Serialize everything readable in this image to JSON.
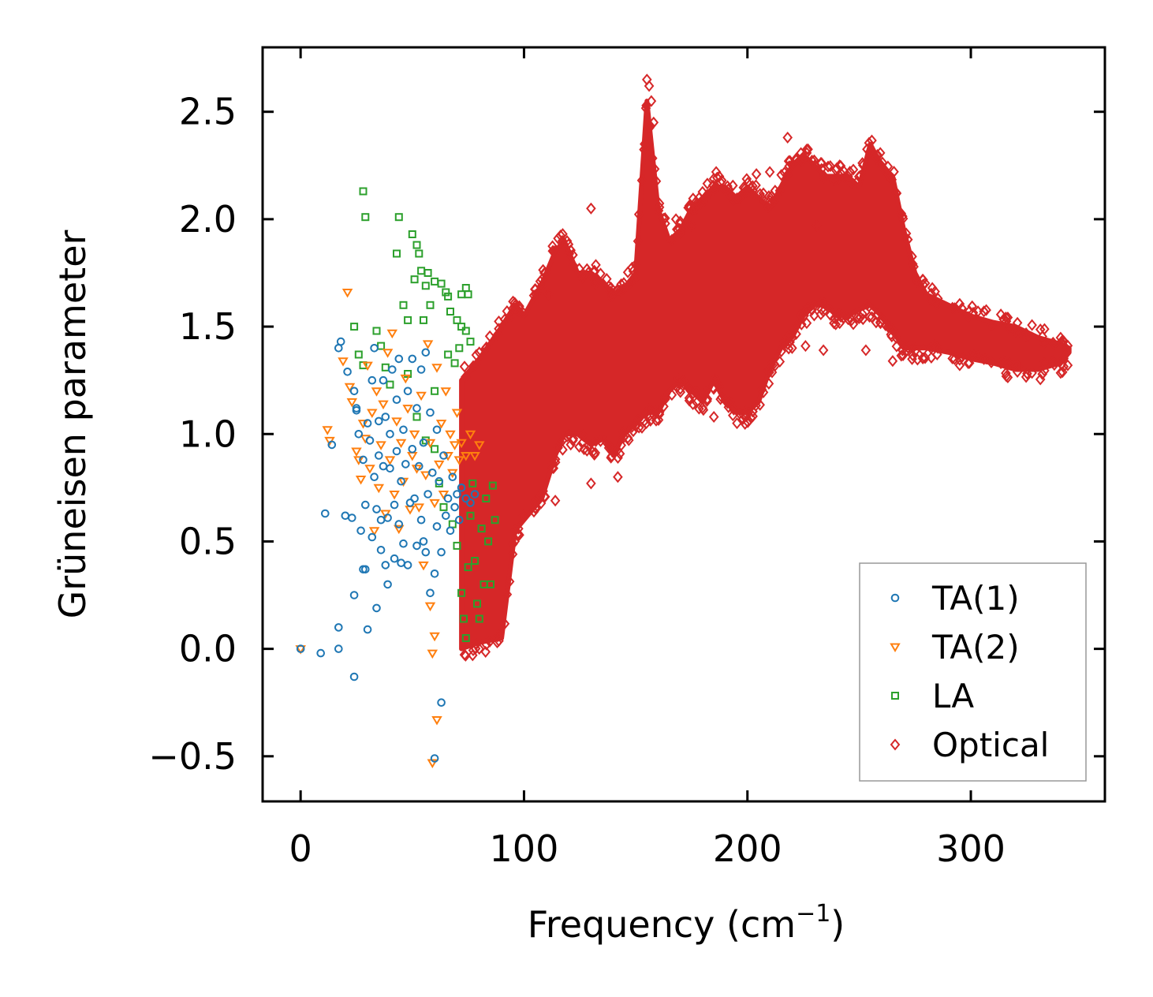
{
  "chart_data": {
    "type": "scatter",
    "title": "",
    "xlabel": "Frequency (cm",
    "xlabel_sup": "−1",
    "xlabel_close": ")",
    "ylabel": "Grüneisen parameter",
    "xlim": [
      -17,
      360
    ],
    "ylim": [
      -0.71,
      2.8
    ],
    "xticks": [
      0,
      100,
      200,
      300
    ],
    "xtick_labels": [
      "0",
      "100",
      "200",
      "300"
    ],
    "yticks": [
      -0.5,
      0.0,
      0.5,
      1.0,
      1.5,
      2.0,
      2.5
    ],
    "ytick_labels": [
      "−0.5",
      "0.0",
      "0.5",
      "1.0",
      "1.5",
      "2.0",
      "2.5"
    ],
    "legend_position": "lower-right",
    "series": [
      {
        "name": "TA(1)",
        "marker": "circle",
        "color": "#1f77b4",
        "points": [
          [
            0,
            0.0
          ],
          [
            9,
            -0.02
          ],
          [
            17,
            0.0
          ],
          [
            17,
            0.1
          ],
          [
            11,
            0.63
          ],
          [
            14,
            0.95
          ],
          [
            17,
            1.4
          ],
          [
            18,
            1.43
          ],
          [
            20,
            0.62
          ],
          [
            21,
            1.29
          ],
          [
            23,
            0.61
          ],
          [
            24,
            1.2
          ],
          [
            24,
            0.25
          ],
          [
            24,
            -0.13
          ],
          [
            25,
            1.12
          ],
          [
            25,
            1.11
          ],
          [
            26,
            1.0
          ],
          [
            27,
            0.55
          ],
          [
            28,
            0.37
          ],
          [
            28,
            0.88
          ],
          [
            29,
            0.37
          ],
          [
            29,
            0.67
          ],
          [
            30,
            0.09
          ],
          [
            30,
            1.05
          ],
          [
            31,
            0.97
          ],
          [
            32,
            0.52
          ],
          [
            32,
            1.25
          ],
          [
            33,
            0.8
          ],
          [
            33,
            1.4
          ],
          [
            34,
            0.19
          ],
          [
            34,
            0.65
          ],
          [
            35,
            0.9
          ],
          [
            35,
            1.06
          ],
          [
            36,
            0.46
          ],
          [
            36,
            0.6
          ],
          [
            37,
            1.25
          ],
          [
            37,
            0.85
          ],
          [
            38,
            0.39
          ],
          [
            38,
            1.08
          ],
          [
            39,
            0.3
          ],
          [
            39,
            0.61
          ],
          [
            40,
            1.0
          ],
          [
            40,
            0.84
          ],
          [
            41,
            1.3
          ],
          [
            42,
            0.42
          ],
          [
            42,
            0.67
          ],
          [
            43,
            0.92
          ],
          [
            43,
            1.16
          ],
          [
            44,
            0.58
          ],
          [
            44,
            1.35
          ],
          [
            45,
            0.4
          ],
          [
            45,
            0.78
          ],
          [
            46,
            0.49
          ],
          [
            46,
            1.02
          ],
          [
            47,
            0.86
          ],
          [
            48,
            0.39
          ],
          [
            48,
            1.2
          ],
          [
            49,
            0.68
          ],
          [
            50,
            0.93
          ],
          [
            50,
            1.35
          ],
          [
            51,
            0.7
          ],
          [
            52,
            0.48
          ],
          [
            52,
            1.12
          ],
          [
            53,
            0.85
          ],
          [
            54,
            0.6
          ],
          [
            54,
            1.3
          ],
          [
            55,
            0.5
          ],
          [
            55,
            0.96
          ],
          [
            56,
            0.45
          ],
          [
            56,
            1.38
          ],
          [
            57,
            0.72
          ],
          [
            58,
            0.26
          ],
          [
            58,
            1.1
          ],
          [
            59,
            0.82
          ],
          [
            60,
            -0.51
          ],
          [
            60,
            0.35
          ],
          [
            61,
            0.57
          ],
          [
            61,
            1.02
          ],
          [
            62,
            0.78
          ],
          [
            63,
            -0.25
          ],
          [
            63,
            0.45
          ],
          [
            64,
            0.9
          ],
          [
            65,
            0.62
          ],
          [
            66,
            0.7
          ],
          [
            67,
            0.55
          ],
          [
            68,
            0.8
          ],
          [
            69,
            0.66
          ],
          [
            70,
            0.72
          ],
          [
            71,
            0.6
          ],
          [
            72,
            0.75
          ],
          [
            74,
            0.7
          ],
          [
            76,
            0.68
          ],
          [
            78,
            0.72
          ]
        ]
      },
      {
        "name": "TA(2)",
        "marker": "triangle-down",
        "color": "#ff7f0e",
        "points": [
          [
            0,
            0.0
          ],
          [
            12,
            1.02
          ],
          [
            13,
            0.97
          ],
          [
            19,
            1.34
          ],
          [
            21,
            1.66
          ],
          [
            22,
            1.22
          ],
          [
            23,
            1.15
          ],
          [
            25,
            0.92
          ],
          [
            26,
            0.88
          ],
          [
            27,
            0.79
          ],
          [
            28,
            1.05
          ],
          [
            29,
            0.98
          ],
          [
            30,
            1.32
          ],
          [
            31,
            0.84
          ],
          [
            32,
            1.1
          ],
          [
            33,
            0.55
          ],
          [
            34,
            1.2
          ],
          [
            35,
            0.75
          ],
          [
            36,
            0.95
          ],
          [
            37,
            1.14
          ],
          [
            38,
            0.63
          ],
          [
            39,
            1.38
          ],
          [
            40,
            0.88
          ],
          [
            41,
            1.47
          ],
          [
            42,
            0.72
          ],
          [
            43,
            1.06
          ],
          [
            44,
            0.56
          ],
          [
            45,
            0.96
          ],
          [
            46,
            0.78
          ],
          [
            47,
            1.26
          ],
          [
            48,
            1.12
          ],
          [
            49,
            0.65
          ],
          [
            50,
            0.9
          ],
          [
            51,
            1.0
          ],
          [
            52,
            0.84
          ],
          [
            53,
            0.66
          ],
          [
            54,
            1.18
          ],
          [
            55,
            0.39
          ],
          [
            56,
            0.81
          ],
          [
            57,
            1.42
          ],
          [
            58,
            0.2
          ],
          [
            58,
            0.96
          ],
          [
            59,
            -0.02
          ],
          [
            59,
            -0.53
          ],
          [
            60,
            0.06
          ],
          [
            60,
            0.68
          ],
          [
            61,
            -0.33
          ],
          [
            61,
            1.31
          ],
          [
            62,
            0.86
          ],
          [
            63,
            1.05
          ],
          [
            64,
            0.72
          ],
          [
            65,
            1.2
          ],
          [
            66,
            0.9
          ],
          [
            67,
            1.0
          ],
          [
            68,
            0.82
          ],
          [
            69,
            0.95
          ],
          [
            70,
            1.1
          ],
          [
            71,
            0.88
          ],
          [
            72,
            0.96
          ],
          [
            74,
            0.9
          ],
          [
            76,
            1.0
          ],
          [
            78,
            0.9
          ],
          [
            80,
            0.95
          ]
        ]
      },
      {
        "name": "LA",
        "marker": "square",
        "color": "#2ca02c",
        "points": [
          [
            28,
            2.13
          ],
          [
            29,
            2.01
          ],
          [
            44,
            2.01
          ],
          [
            50,
            1.93
          ],
          [
            52,
            1.88
          ],
          [
            53,
            1.84
          ],
          [
            43,
            1.84
          ],
          [
            54,
            1.76
          ],
          [
            57,
            1.75
          ],
          [
            60,
            1.71
          ],
          [
            63,
            1.7
          ],
          [
            65,
            1.66
          ],
          [
            66,
            1.64
          ],
          [
            67,
            1.57
          ],
          [
            70,
            1.53
          ],
          [
            72,
            1.5
          ],
          [
            74,
            1.48
          ],
          [
            76,
            1.43
          ],
          [
            24,
            1.5
          ],
          [
            26,
            1.37
          ],
          [
            28,
            1.32
          ],
          [
            34,
            1.48
          ],
          [
            36,
            1.41
          ],
          [
            38,
            1.31
          ],
          [
            40,
            1.23
          ],
          [
            48,
            1.28
          ],
          [
            52,
            1.08
          ],
          [
            56,
            0.97
          ],
          [
            60,
            0.93
          ],
          [
            62,
            0.77
          ],
          [
            64,
            0.66
          ],
          [
            68,
            0.58
          ],
          [
            70,
            0.48
          ],
          [
            72,
            0.26
          ],
          [
            73,
            0.14
          ],
          [
            74,
            0.05
          ],
          [
            75,
            0.38
          ],
          [
            76,
            0.62
          ],
          [
            77,
            0.77
          ],
          [
            78,
            0.41
          ],
          [
            79,
            0.21
          ],
          [
            80,
            0.14
          ],
          [
            81,
            0.56
          ],
          [
            82,
            0.3
          ],
          [
            83,
            0.7
          ],
          [
            84,
            0.5
          ],
          [
            85,
            0.3
          ],
          [
            86,
            0.76
          ],
          [
            87,
            0.6
          ],
          [
            60,
            1.2
          ],
          [
            55,
            1.53
          ],
          [
            58,
            1.6
          ],
          [
            66,
            1.37
          ],
          [
            69,
            1.33
          ],
          [
            71,
            1.4
          ],
          [
            72,
            1.65
          ],
          [
            74,
            1.68
          ],
          [
            75,
            1.65
          ],
          [
            46,
            1.6
          ],
          [
            48,
            1.53
          ],
          [
            51,
            1.72
          ],
          [
            56,
            1.69
          ]
        ]
      },
      {
        "name": "Optical",
        "marker": "diamond",
        "color": "#d62728",
        "band": {
          "x": [
            72,
            80,
            90,
            96,
            100,
            108,
            114,
            118,
            124,
            130,
            136,
            140,
            145,
            150,
            155,
            160,
            165,
            170,
            175,
            180,
            185,
            190,
            195,
            200,
            205,
            210,
            215,
            220,
            225,
            230,
            235,
            240,
            245,
            250,
            255,
            260,
            265,
            270,
            275,
            280,
            290,
            300,
            310,
            320,
            330,
            340,
            344
          ],
          "lower": [
            0.0,
            0.03,
            0.05,
            0.55,
            0.6,
            0.7,
            0.9,
            1.0,
            1.0,
            0.95,
            0.98,
            0.9,
            1.0,
            1.05,
            1.1,
            1.1,
            1.2,
            1.25,
            1.2,
            1.15,
            1.25,
            1.15,
            1.1,
            1.1,
            1.15,
            1.3,
            1.4,
            1.45,
            1.55,
            1.6,
            1.6,
            1.55,
            1.55,
            1.58,
            1.6,
            1.55,
            1.48,
            1.4,
            1.4,
            1.4,
            1.38,
            1.35,
            1.33,
            1.3,
            1.3,
            1.33,
            1.38
          ],
          "upper": [
            1.25,
            1.35,
            1.5,
            1.6,
            1.55,
            1.7,
            1.85,
            1.9,
            1.75,
            1.75,
            1.7,
            1.65,
            1.68,
            1.75,
            2.55,
            2.05,
            1.9,
            1.95,
            2.05,
            2.1,
            2.15,
            2.15,
            2.1,
            2.15,
            2.1,
            2.05,
            2.15,
            2.25,
            2.3,
            2.25,
            2.2,
            2.2,
            2.2,
            2.15,
            2.35,
            2.25,
            2.2,
            1.95,
            1.75,
            1.65,
            1.6,
            1.55,
            1.52,
            1.5,
            1.45,
            1.42,
            1.4
          ]
        },
        "outliers": [
          [
            155,
            2.65
          ],
          [
            156,
            2.62
          ],
          [
            157,
            2.55
          ],
          [
            158,
            2.45
          ],
          [
            154,
            2.35
          ],
          [
            130,
            2.05
          ],
          [
            218,
            2.38
          ],
          [
            204,
            2.21
          ],
          [
            210,
            2.22
          ],
          [
            186,
            2.22
          ],
          [
            132,
            1.7
          ],
          [
            108,
            1.72
          ],
          [
            114,
            0.69
          ],
          [
            130,
            0.77
          ],
          [
            142,
            0.8
          ],
          [
            185,
            1.08
          ],
          [
            198,
            1.07
          ],
          [
            234,
            1.39
          ],
          [
            226,
            1.41
          ],
          [
            220,
            1.4
          ],
          [
            253,
            1.39
          ],
          [
            265,
            1.34
          ],
          [
            295,
            1.32
          ],
          [
            77,
            -0.03
          ],
          [
            88,
            0.03
          ],
          [
            111,
            1.65
          ],
          [
            168,
            2.0
          ],
          [
            175,
            1.97
          ],
          [
            231,
            1.97
          ]
        ]
      }
    ]
  }
}
